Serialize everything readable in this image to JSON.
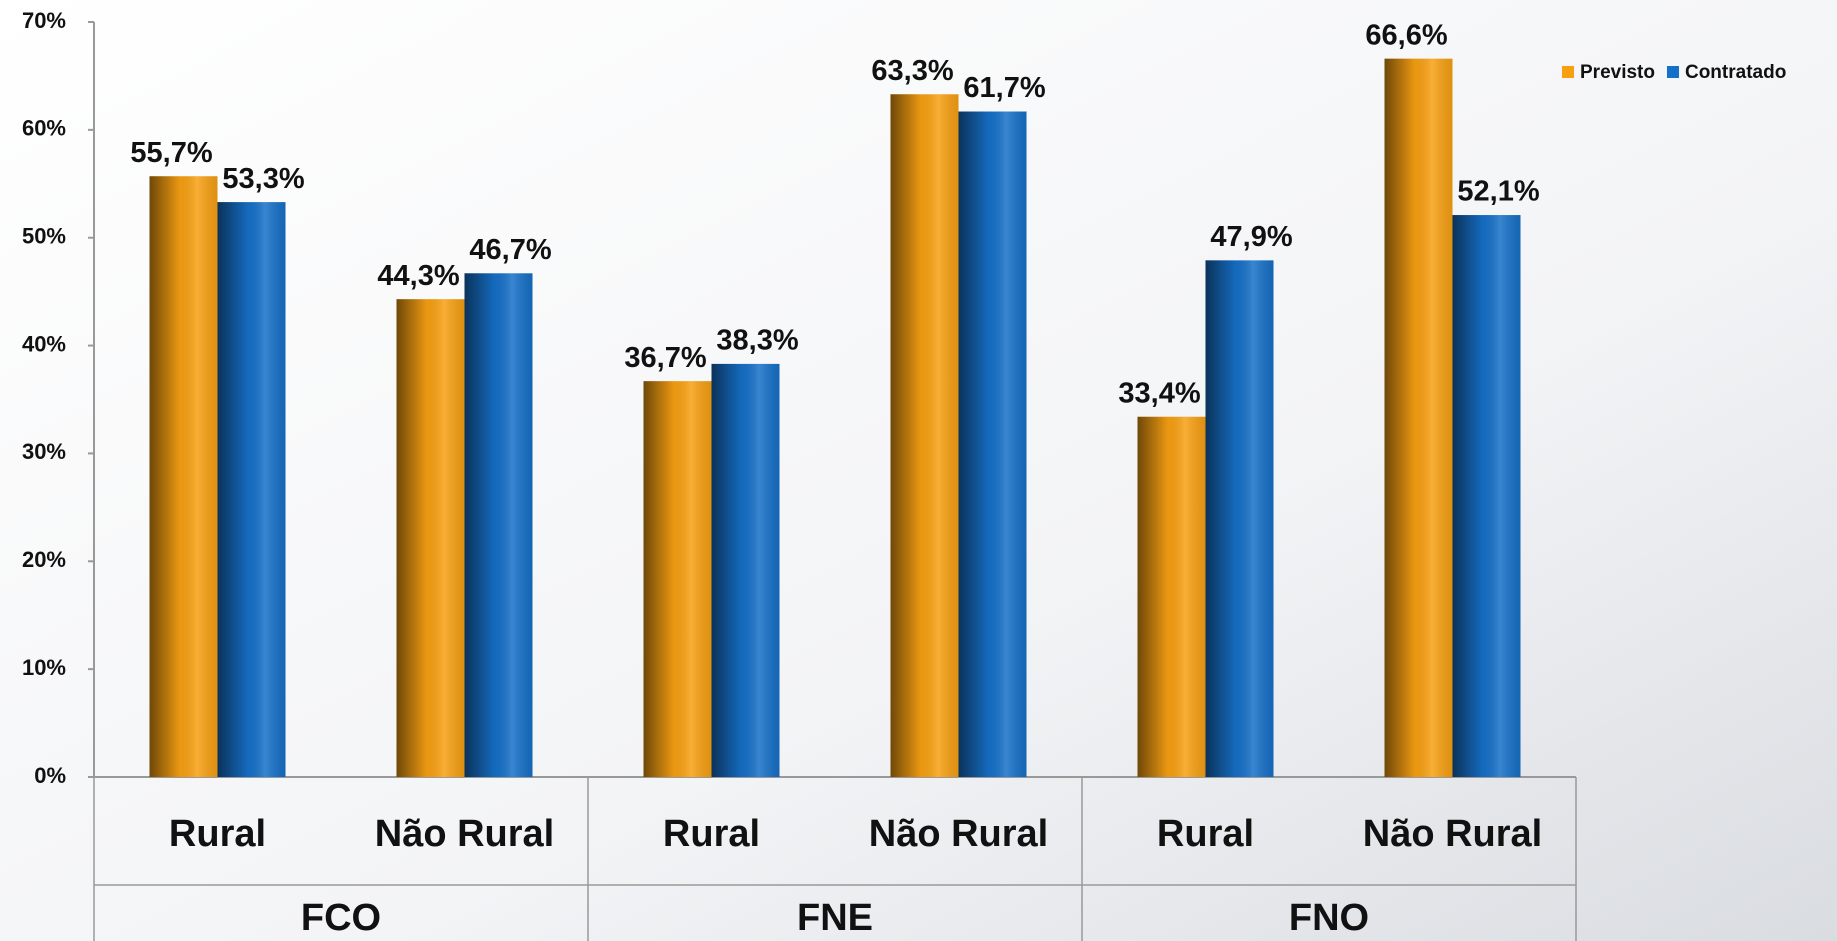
{
  "chart_data": {
    "type": "bar",
    "categories": [
      "Rural",
      "Não Rural",
      "Rural",
      "Não Rural",
      "Rural",
      "Não Rural"
    ],
    "groups": [
      "FCO",
      "FNE",
      "FNO"
    ],
    "series": [
      {
        "name": "Previsto",
        "color": "#f7a012",
        "values": [
          55.7,
          44.3,
          36.7,
          63.3,
          33.4,
          66.6
        ],
        "value_labels": [
          "55,7%",
          "44,3%",
          "36,7%",
          "63,3%",
          "33,4%",
          "66,6%"
        ]
      },
      {
        "name": "Contratado",
        "color": "#1670c8",
        "values": [
          53.3,
          46.7,
          38.3,
          61.7,
          47.9,
          52.1
        ],
        "value_labels": [
          "53,3%",
          "46,7%",
          "38,3%",
          "61,7%",
          "47,9%",
          "52,1%"
        ]
      }
    ],
    "ylim": [
      0,
      70
    ],
    "yticks": [
      {
        "value": 0,
        "label": "0%"
      },
      {
        "value": 10,
        "label": "10%"
      },
      {
        "value": 20,
        "label": "20%"
      },
      {
        "value": 30,
        "label": "30%"
      },
      {
        "value": 40,
        "label": "40%"
      },
      {
        "value": 50,
        "label": "50%"
      },
      {
        "value": 60,
        "label": "60%"
      },
      {
        "value": 70,
        "label": "70%"
      }
    ],
    "legend": "top-right"
  }
}
